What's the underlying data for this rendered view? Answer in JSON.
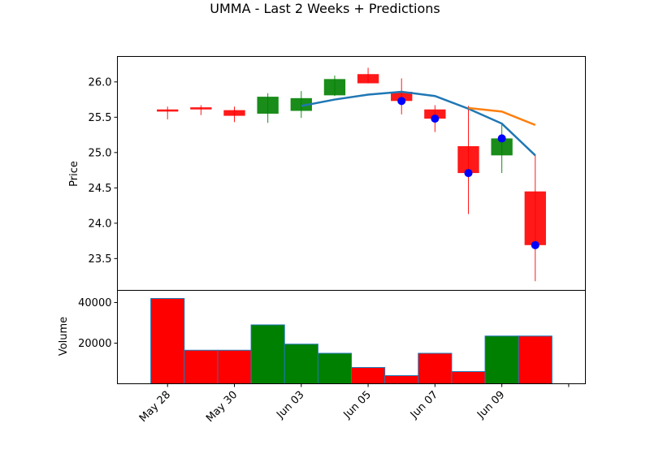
{
  "chart_data": {
    "type": "candlestick",
    "title": "UMMA - Last 2 Weeks + Predictions",
    "price_panel": {
      "ylabel": "Price",
      "ylim": [
        23.05,
        26.36
      ],
      "yticks": [
        23.5,
        24.0,
        24.5,
        25.0,
        25.5,
        26.0
      ],
      "ytick_labels": [
        "23.5",
        "24.0",
        "24.5",
        "25.0",
        "25.5",
        "26.0"
      ]
    },
    "volume_panel": {
      "ylabel": "Volume",
      "ylim": [
        0,
        46000
      ],
      "yticks": [
        20000,
        40000
      ],
      "ytick_labels": [
        "20000",
        "40000"
      ]
    },
    "xlim": [
      -1,
      13
    ],
    "xticks": [
      0.5,
      2.5,
      4.5,
      6.5,
      8.5,
      10.5,
      12.5
    ],
    "xtick_labels": [
      "May 28",
      "May 30",
      "Jun 03",
      "Jun 05",
      "Jun 07",
      "Jun 09",
      ""
    ],
    "candles": [
      {
        "x": 0.5,
        "open": 25.61,
        "close": 25.58,
        "high": 25.65,
        "low": 25.47,
        "volume": 42000,
        "color": "#ff0000"
      },
      {
        "x": 1.5,
        "open": 25.64,
        "close": 25.61,
        "high": 25.67,
        "low": 25.53,
        "volume": 16500,
        "color": "#ff0000"
      },
      {
        "x": 2.5,
        "open": 25.6,
        "close": 25.52,
        "high": 25.65,
        "low": 25.43,
        "volume": 16500,
        "color": "#ff0000"
      },
      {
        "x": 3.5,
        "open": 25.55,
        "close": 25.79,
        "high": 25.84,
        "low": 25.42,
        "volume": 29000,
        "color": "#008000"
      },
      {
        "x": 4.5,
        "open": 25.59,
        "close": 25.77,
        "high": 25.87,
        "low": 25.49,
        "volume": 19500,
        "color": "#008000"
      },
      {
        "x": 5.5,
        "open": 25.81,
        "close": 26.04,
        "high": 26.09,
        "low": 25.8,
        "volume": 15000,
        "color": "#008000"
      },
      {
        "x": 6.5,
        "open": 26.11,
        "close": 25.98,
        "high": 26.2,
        "low": 25.98,
        "volume": 8000,
        "color": "#ff0000"
      },
      {
        "x": 7.5,
        "open": 25.86,
        "close": 25.73,
        "high": 26.05,
        "low": 25.54,
        "volume": 4000,
        "color": "#ff0000"
      },
      {
        "x": 8.5,
        "open": 25.61,
        "close": 25.48,
        "high": 25.67,
        "low": 25.29,
        "volume": 15000,
        "color": "#ff0000"
      },
      {
        "x": 9.5,
        "open": 25.09,
        "close": 24.71,
        "high": 25.66,
        "low": 24.13,
        "volume": 6000,
        "color": "#ff0000"
      },
      {
        "x": 10.5,
        "open": 24.96,
        "close": 25.2,
        "high": 25.42,
        "low": 24.71,
        "volume": 23500,
        "color": "#008000"
      },
      {
        "x": 11.5,
        "open": 24.45,
        "close": 23.69,
        "high": 24.97,
        "low": 23.18,
        "volume": 23500,
        "color": "#ff0000"
      }
    ],
    "moving_average": {
      "color": "#1f77b4",
      "points": [
        [
          4.5,
          25.66
        ],
        [
          5.5,
          25.75
        ],
        [
          6.5,
          25.82
        ],
        [
          7.5,
          25.86
        ],
        [
          8.5,
          25.8
        ],
        [
          9.5,
          25.62
        ],
        [
          10.5,
          25.41
        ],
        [
          11.5,
          24.96
        ]
      ]
    },
    "prediction_line": {
      "color": "#ff7f0e",
      "points": [
        [
          9.5,
          25.63
        ],
        [
          10.5,
          25.58
        ],
        [
          11.5,
          25.39
        ]
      ]
    },
    "prediction_markers": {
      "color": "#0000ff",
      "points": [
        [
          7.5,
          25.73
        ],
        [
          8.5,
          25.48
        ],
        [
          9.5,
          24.71
        ],
        [
          10.5,
          25.2
        ],
        [
          11.5,
          23.69
        ]
      ]
    }
  }
}
